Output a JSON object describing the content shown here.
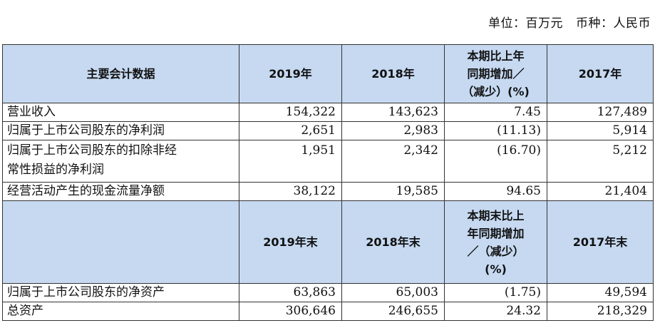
{
  "header": {
    "unit": "单位：百万元",
    "currency": "币种：人民币"
  },
  "table": {
    "header1": {
      "col0": "主要会计数据",
      "col1": "2019年",
      "col2": "2018年",
      "col3_line1": "本期比上年",
      "col3_line2": "同期增加／",
      "col3_line3": "（减少）(%)",
      "col4": "2017年"
    },
    "rows1": [
      {
        "label": "营业收入",
        "v2019": "154,322",
        "v2018": "143,623",
        "change": "7.45",
        "v2017": "127,489"
      },
      {
        "label": "归属于上市公司股东的净利润",
        "v2019": "2,651",
        "v2018": "2,983",
        "change": "(11.13)",
        "v2017": "5,914"
      },
      {
        "label_line1": "归属于上市公司股东的扣除非经",
        "label_line2": "常性损益的净利润",
        "v2019": "1,951",
        "v2018": "2,342",
        "change": "(16.70)",
        "v2017": "5,212"
      },
      {
        "label": "经营活动产生的现金流量净额",
        "v2019": "38,122",
        "v2018": "19,585",
        "change": "94.65",
        "v2017": "21,404"
      }
    ],
    "header2": {
      "col1": "2019年末",
      "col2": "2018年末",
      "col3_line1": "本期末比上",
      "col3_line2": "年同期增加",
      "col3_line3": "／（减少）",
      "col3_line4": "(%)",
      "col4": "2017年末"
    },
    "rows2": [
      {
        "label": "归属于上市公司股东的净资产",
        "v2019": "63,863",
        "v2018": "65,003",
        "change": "(1.75)",
        "v2017": "49,594"
      },
      {
        "label": "总资产",
        "v2019": "306,646",
        "v2018": "246,655",
        "change": "24.32",
        "v2017": "218,329"
      }
    ]
  }
}
